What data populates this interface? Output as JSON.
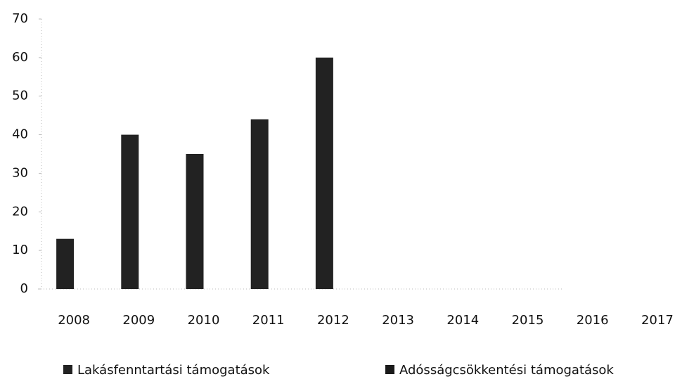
{
  "chart_data": {
    "type": "bar",
    "categories": [
      "2008",
      "2009",
      "2010",
      "2011",
      "2012",
      "2013",
      "2014",
      "2015",
      "2016",
      "2017"
    ],
    "series": [
      {
        "name": "Lakásfenntartási támogatások",
        "color": "#222222",
        "values": [
          13,
          40,
          35,
          44,
          60,
          null,
          null,
          null,
          null,
          null
        ]
      },
      {
        "name": "Adósságcsökkentési támogatások",
        "color": "#1a1a1a",
        "values": [
          null,
          null,
          null,
          null,
          null,
          null,
          null,
          null,
          null,
          null
        ]
      }
    ],
    "ylim": [
      0,
      70
    ],
    "yticks": [
      0,
      10,
      20,
      30,
      40,
      50,
      60,
      70
    ],
    "grid": false,
    "legend": "bottom"
  }
}
